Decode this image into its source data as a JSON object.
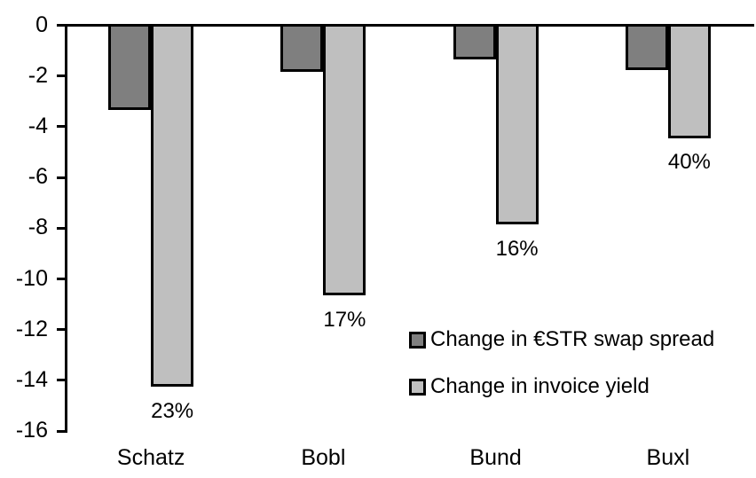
{
  "chart_data": {
    "type": "bar",
    "title": "",
    "xlabel": "",
    "ylabel": "",
    "categories": [
      "Schatz",
      "Bobl",
      "Bund",
      "Buxl"
    ],
    "series": [
      {
        "name": "Change in €STR swap spread",
        "color": "#7F7F7F",
        "values": [
          -3.3,
          -1.8,
          -1.3,
          -1.7
        ]
      },
      {
        "name": "Change in invoice yield",
        "color": "#BFBFBF",
        "values": [
          -14.2,
          -10.6,
          -7.8,
          -4.4
        ],
        "point_labels": [
          "23%",
          "17%",
          "16%",
          "40%"
        ]
      }
    ],
    "ylim": [
      -16,
      0
    ],
    "yticks": [
      0,
      -2,
      -4,
      -6,
      -8,
      -10,
      -12,
      -14,
      -16
    ],
    "grid": false,
    "legend_position": "inside-right",
    "colors": {
      "axis": "#000000",
      "bar_border": "#000000",
      "background": "#FFFFFF",
      "text": "#000000"
    }
  }
}
